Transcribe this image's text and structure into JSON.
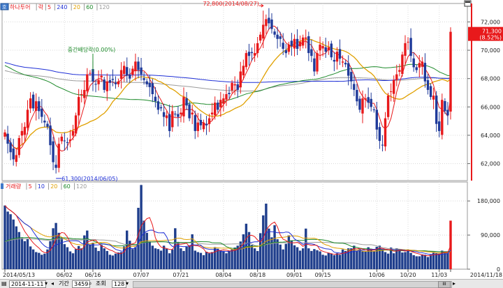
{
  "chart_data": [
    {
      "type": "candlestick",
      "legend": {
        "prefix": "하나투어",
        "items": [
          "락",
          "5",
          "240",
          "20",
          "60",
          "120"
        ],
        "colors": [
          "#e8191b",
          "#e8191b",
          "#1e2fd6",
          "#e0a000",
          "#1d8a2a",
          "#999999"
        ]
      },
      "y_ticks": [
        62000,
        64000,
        66000,
        68000,
        70000,
        72000
      ],
      "y_tick_labels": [
        "62,000",
        "64,000",
        "66,000",
        "68,000",
        "70,000",
        "72,000"
      ],
      "ylim": [
        60800,
        73300
      ],
      "last_price": {
        "label": "71,300",
        "change": "8.52%"
      },
      "annotations": [
        {
          "text": "72,800(2014/08/27)",
          "kind": "high"
        },
        {
          "text": "61,300(2014/06/05)",
          "kind": "low"
        },
        {
          "text": "중간배당락(0.00%)",
          "kind": "event"
        }
      ],
      "closes": [
        64200,
        63400,
        62800,
        62300,
        62600,
        63800,
        64300,
        64600,
        65800,
        66600,
        65900,
        66400,
        65700,
        65300,
        64900,
        64600,
        63300,
        62100,
        61700,
        63400,
        63900,
        63600,
        63500,
        63700,
        64300,
        65400,
        66700,
        66900,
        67200,
        68300,
        68400,
        67800,
        67600,
        67900,
        68200,
        67200,
        67800,
        67700,
        67900,
        67600,
        67800,
        68600,
        68900,
        68200,
        68000,
        68700,
        69200,
        68600,
        68300,
        67900,
        67600,
        67400,
        66900,
        66400,
        65800,
        65900,
        65300,
        65400,
        64300,
        65700,
        65500,
        65300,
        65600,
        66700,
        66100,
        65200,
        65600,
        64300,
        64900,
        64700,
        64900,
        64700,
        65200,
        65600,
        66300,
        65800,
        66500,
        66600,
        66900,
        66900,
        67700,
        67600,
        67200,
        68500,
        68900,
        69800,
        69600,
        69800,
        69800,
        70500,
        71100,
        71800,
        72200,
        71900,
        71500,
        71100,
        70800,
        70800,
        70100,
        69800,
        70400,
        70300,
        70800,
        70100,
        70600,
        70900,
        70900,
        69800,
        69600,
        68500,
        69800,
        70400,
        70300,
        69900,
        70200,
        69500,
        69200,
        69900,
        69400,
        69200,
        69000,
        68200,
        67800,
        67200,
        66400,
        65800,
        66600,
        66600,
        66300,
        66000,
        65800,
        64400,
        63600,
        63300,
        65200,
        66800,
        67100,
        67900,
        68300,
        68600,
        69700,
        70500,
        70600,
        69600,
        68800,
        68600,
        69100,
        69200,
        67800,
        67200,
        66700,
        66800,
        64800,
        64300,
        66500,
        65700,
        65400,
        71300
      ]
    },
    {
      "type": "bar",
      "legend": {
        "prefix": "거래량",
        "items": [
          "5",
          "10",
          "20",
          "60",
          "120"
        ],
        "colors": [
          "#e8191b",
          "#1e2fd6",
          "#e0a000",
          "#1d8a2a",
          "#999999"
        ]
      },
      "y_ticks": [
        0,
        90000,
        180000
      ],
      "y_tick_labels": [
        "0",
        "90,000",
        "180,000"
      ],
      "ylim": [
        0,
        230000
      ],
      "values": [
        168000,
        152000,
        145000,
        131000,
        113000,
        98000,
        82000,
        74000,
        79000,
        60000,
        52000,
        45000,
        43000,
        38000,
        41000,
        52000,
        74000,
        108000,
        122000,
        96000,
        84000,
        66000,
        58000,
        47000,
        42000,
        53000,
        61000,
        55000,
        89000,
        102000,
        65000,
        70000,
        57000,
        48000,
        64000,
        55000,
        48000,
        38000,
        36000,
        41000,
        44000,
        45000,
        60000,
        102000,
        75000,
        53000,
        58000,
        162000,
        222000,
        128000,
        96000,
        73000,
        62000,
        55000,
        53000,
        49000,
        62000,
        54000,
        42000,
        52000,
        108000,
        72000,
        55000,
        48000,
        59000,
        63000,
        92000,
        49000,
        45000,
        43000,
        37000,
        46000,
        42000,
        45000,
        58000,
        54000,
        49000,
        48000,
        42000,
        49000,
        52000,
        57000,
        62000,
        73000,
        92000,
        120000,
        98000,
        64000,
        55000,
        48000,
        95000,
        142000,
        173000,
        107000,
        84000,
        116000,
        79000,
        65000,
        52000,
        67000,
        89000,
        76000,
        63000,
        58000,
        49000,
        55000,
        107000,
        55000,
        48000,
        53000,
        50000,
        47000,
        38000,
        36000,
        43000,
        41000,
        37000,
        42000,
        38000,
        52000,
        48000,
        55000,
        55000,
        62000,
        48000,
        53000,
        47000,
        46000,
        58000,
        53000,
        47000,
        59000,
        62000,
        52000,
        45000,
        41000,
        57000,
        42000,
        55000,
        52000,
        44000,
        45000,
        52000,
        43000,
        37000,
        34000,
        34000,
        39000,
        38000,
        32000,
        38000,
        43000,
        42000,
        41000,
        49000,
        47000,
        43000,
        128000
      ]
    }
  ],
  "x_labels": [
    "2014/05/13",
    "06/02",
    "06/16",
    "07/07",
    "07/21",
    "08/04",
    "08/18",
    "09/01",
    "09/15",
    "10/06",
    "10/20",
    "11/03",
    "2014/11/18"
  ],
  "toolbar": {
    "date": "2014-11-11",
    "period": "기간",
    "count": "3459",
    "lookup": "조회",
    "zoom": "128",
    "scroll_thumb": "III"
  },
  "top_icon": "chart-settings-icon"
}
